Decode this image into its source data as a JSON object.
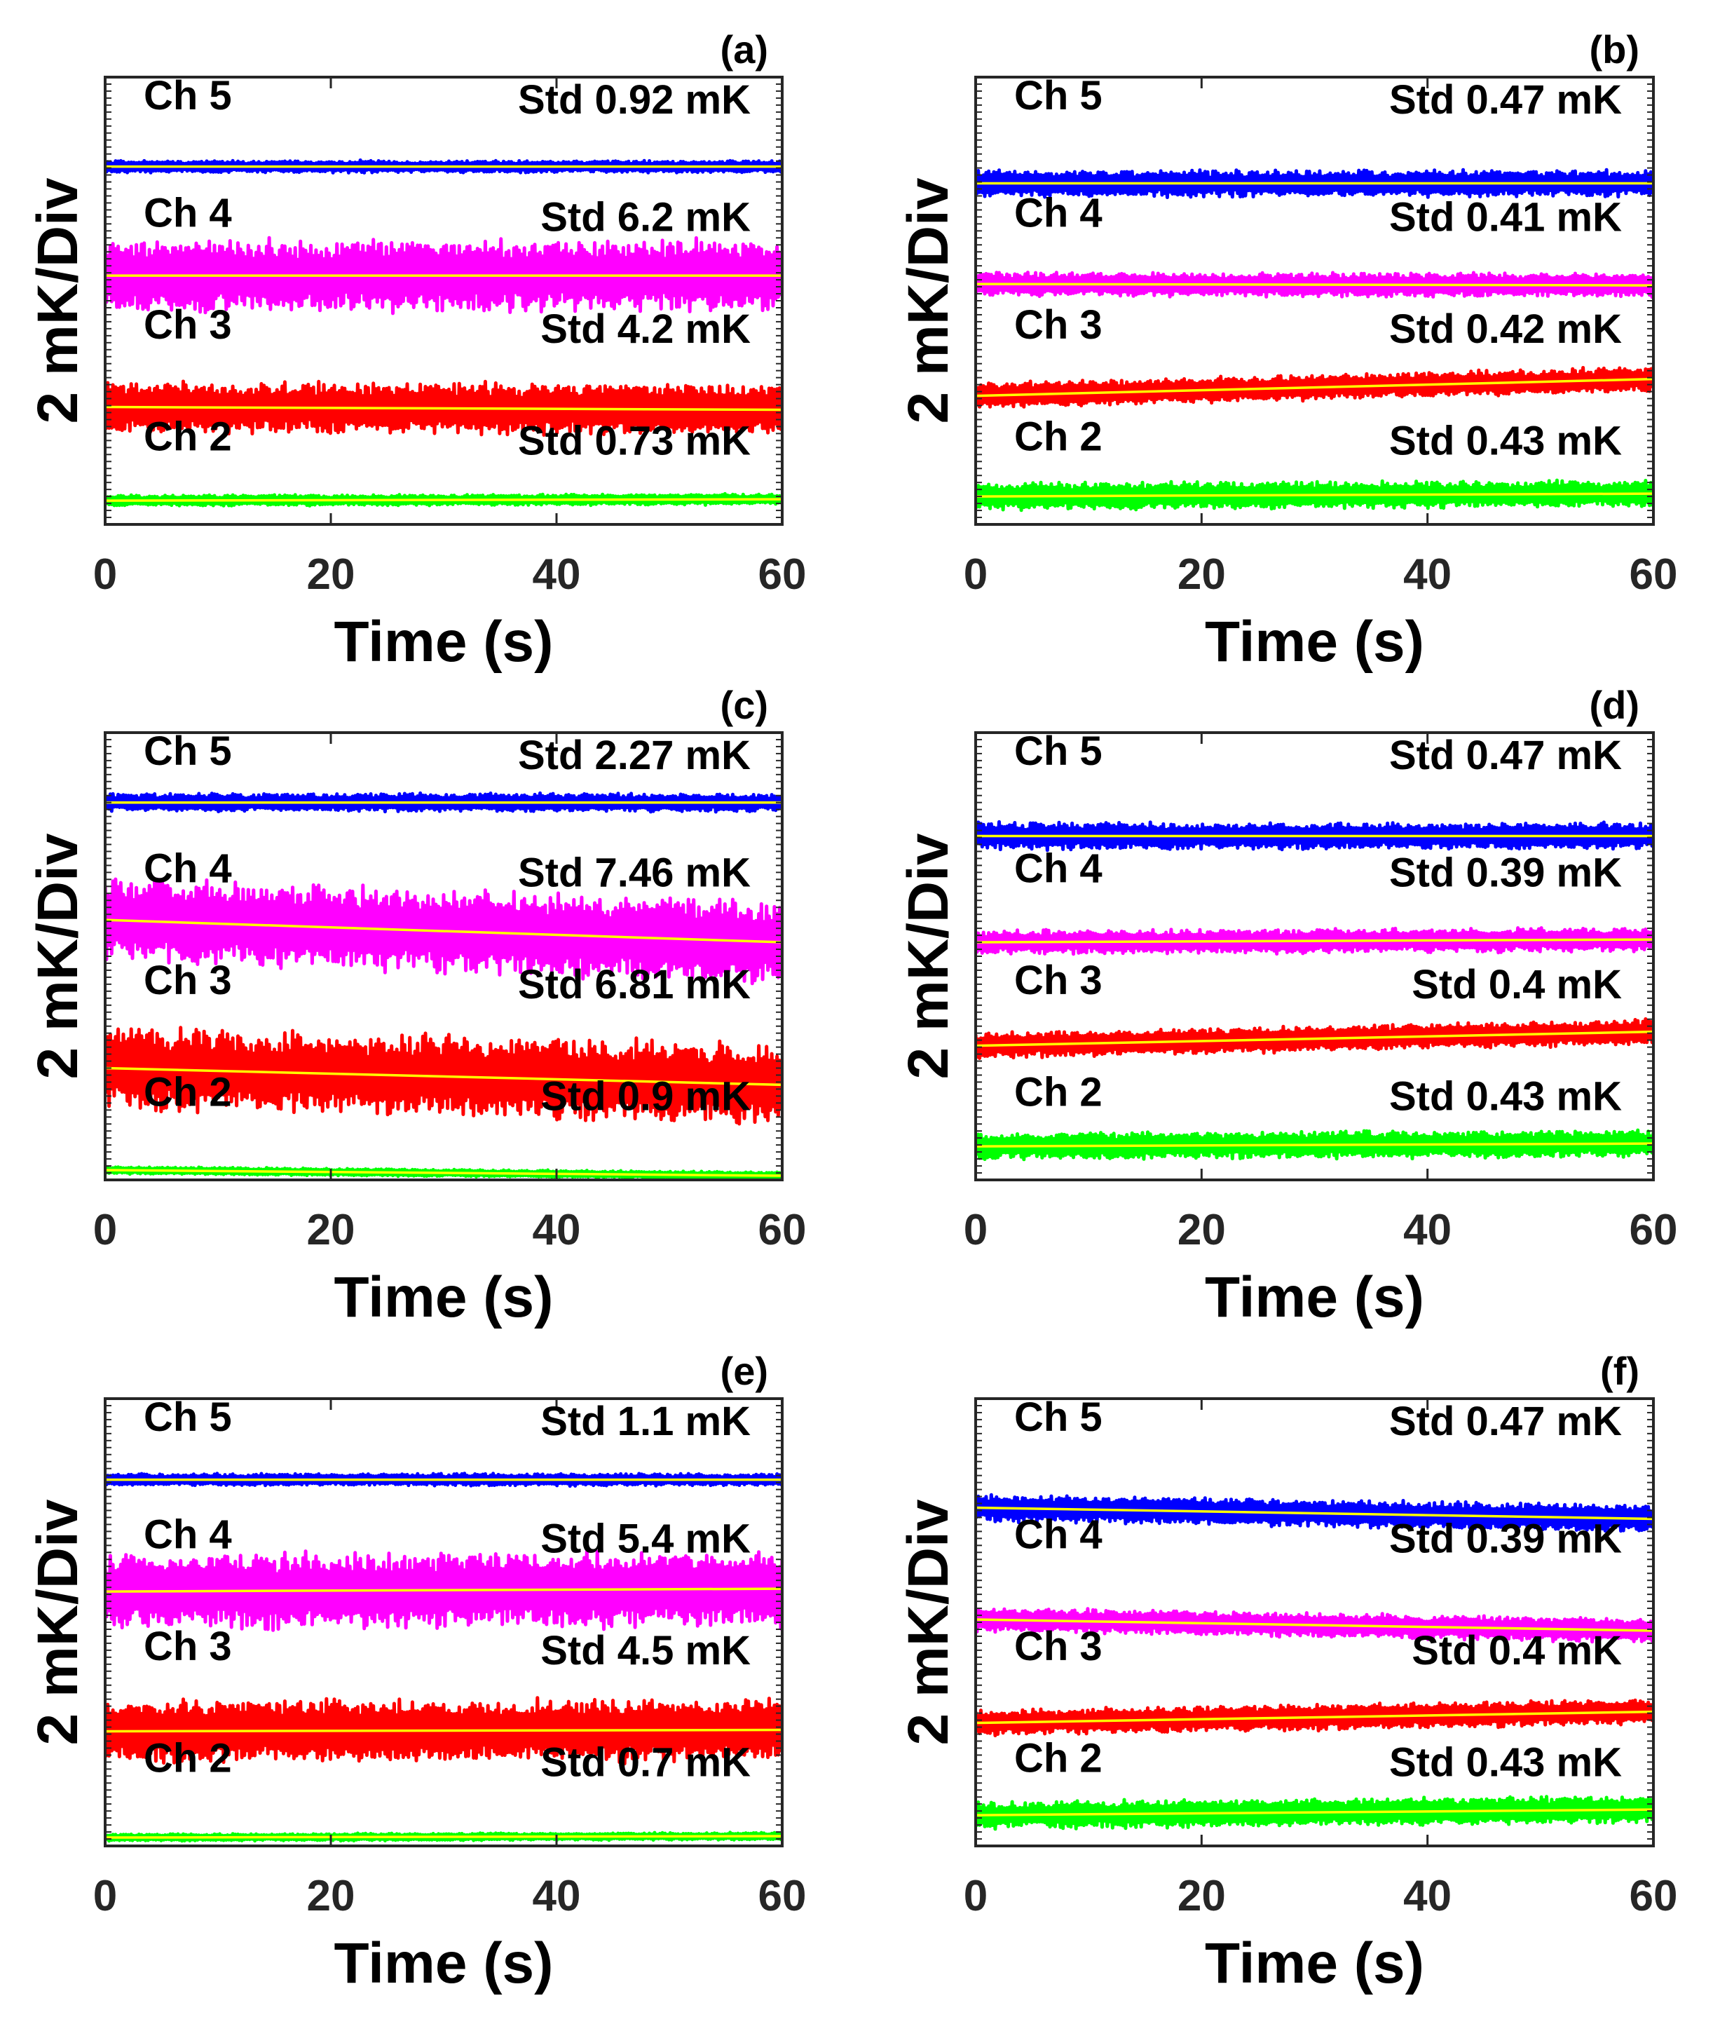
{
  "figure": {
    "palette": {
      "ch5": "#0000ff",
      "ch4": "#ff00ff",
      "ch3": "#ff0000",
      "ch2": "#00ff00",
      "trend": "#ffff00",
      "axis": "#262626"
    }
  },
  "chart_data": [
    {
      "type": "line",
      "panel_label": "(a)",
      "xlabel": "Time (s)",
      "ylabel": "2 mK/Div",
      "xlim": [
        0,
        60
      ],
      "ylim": [
        0,
        16
      ],
      "xticks": [
        "0",
        "20",
        "40",
        "60"
      ],
      "series": [
        {
          "name": "Ch 5",
          "std_label": "Std 0.92 mK",
          "color": "#0000ff",
          "mean_start": 12.8,
          "mean_end": 12.8,
          "noise": 0.2
        },
        {
          "name": "Ch 4",
          "std_label": "Std 6.2 mK",
          "color": "#ff00ff",
          "mean_start": 8.9,
          "mean_end": 8.9,
          "noise": 1.2
        },
        {
          "name": "Ch 3",
          "std_label": "Std 4.2 mK",
          "color": "#ff0000",
          "mean_start": 4.2,
          "mean_end": 4.1,
          "noise": 0.85
        },
        {
          "name": "Ch 2",
          "std_label": "Std 0.73 mK",
          "color": "#00ff00",
          "mean_start": 0.85,
          "mean_end": 0.9,
          "noise": 0.18
        }
      ]
    },
    {
      "type": "line",
      "panel_label": "(b)",
      "xlabel": "Time (s)",
      "ylabel": "2 mK/Div",
      "xlim": [
        0,
        60
      ],
      "ylim": [
        0,
        16
      ],
      "xticks": [
        "0",
        "20",
        "40",
        "60"
      ],
      "series": [
        {
          "name": "Ch 5",
          "std_label": "Std 0.47 mK",
          "color": "#0000ff",
          "mean_start": 12.2,
          "mean_end": 12.2,
          "noise": 0.45
        },
        {
          "name": "Ch 4",
          "std_label": "Std 0.41 mK",
          "color": "#ff00ff",
          "mean_start": 8.6,
          "mean_end": 8.55,
          "noise": 0.4
        },
        {
          "name": "Ch 3",
          "std_label": "Std 0.42 mK",
          "color": "#ff0000",
          "mean_start": 4.6,
          "mean_end": 5.2,
          "noise": 0.42
        },
        {
          "name": "Ch 2",
          "std_label": "Std 0.43 mK",
          "color": "#00ff00",
          "mean_start": 1.0,
          "mean_end": 1.1,
          "noise": 0.45
        }
      ]
    },
    {
      "type": "line",
      "panel_label": "(c)",
      "xlabel": "Time (s)",
      "ylabel": "2 mK/Div",
      "xlim": [
        0,
        60
      ],
      "ylim": [
        0,
        16
      ],
      "xticks": [
        "0",
        "20",
        "40",
        "60"
      ],
      "series": [
        {
          "name": "Ch 5",
          "std_label": "Std 2.27 mK",
          "color": "#0000ff",
          "mean_start": 13.5,
          "mean_end": 13.5,
          "noise": 0.3
        },
        {
          "name": "Ch 4",
          "std_label": "Std 7.46 mK",
          "color": "#ff00ff",
          "mean_start": 9.3,
          "mean_end": 8.5,
          "noise": 1.4
        },
        {
          "name": "Ch 3",
          "std_label": "Std 6.81 mK",
          "color": "#ff0000",
          "mean_start": 4.0,
          "mean_end": 3.4,
          "noise": 1.35
        },
        {
          "name": "Ch 2",
          "std_label": "Std 0.9 mK",
          "color": "#00ff00",
          "mean_start": 0.35,
          "mean_end": 0.15,
          "noise": 0.12
        }
      ]
    },
    {
      "type": "line",
      "panel_label": "(d)",
      "xlabel": "Time (s)",
      "ylabel": "2 mK/Div",
      "xlim": [
        0,
        60
      ],
      "ylim": [
        0,
        16
      ],
      "xticks": [
        "0",
        "20",
        "40",
        "60"
      ],
      "series": [
        {
          "name": "Ch 5",
          "std_label": "Std 0.47 mK",
          "color": "#0000ff",
          "mean_start": 12.3,
          "mean_end": 12.3,
          "noise": 0.45
        },
        {
          "name": "Ch 4",
          "std_label": "Std 0.39 mK",
          "color": "#ff00ff",
          "mean_start": 8.5,
          "mean_end": 8.6,
          "noise": 0.4
        },
        {
          "name": "Ch 3",
          "std_label": "Std 0.4 mK",
          "color": "#ff0000",
          "mean_start": 4.8,
          "mean_end": 5.3,
          "noise": 0.42
        },
        {
          "name": "Ch 2",
          "std_label": "Std 0.43 mK",
          "color": "#00ff00",
          "mean_start": 1.2,
          "mean_end": 1.3,
          "noise": 0.45
        }
      ]
    },
    {
      "type": "line",
      "panel_label": "(e)",
      "xlabel": "Time (s)",
      "ylabel": "2 mK/Div",
      "xlim": [
        0,
        60
      ],
      "ylim": [
        0,
        16
      ],
      "xticks": [
        "0",
        "20",
        "40",
        "60"
      ],
      "series": [
        {
          "name": "Ch 5",
          "std_label": "Std 1.1 mK",
          "color": "#0000ff",
          "mean_start": 13.1,
          "mean_end": 13.1,
          "noise": 0.2
        },
        {
          "name": "Ch 4",
          "std_label": "Std 5.4 mK",
          "color": "#ff00ff",
          "mean_start": 9.1,
          "mean_end": 9.2,
          "noise": 1.25
        },
        {
          "name": "Ch 3",
          "std_label": "Std 4.5 mK",
          "color": "#ff0000",
          "mean_start": 4.1,
          "mean_end": 4.15,
          "noise": 1.05
        },
        {
          "name": "Ch 2",
          "std_label": "Std 0.7 mK",
          "color": "#00ff00",
          "mean_start": 0.3,
          "mean_end": 0.35,
          "noise": 0.12
        }
      ]
    },
    {
      "type": "line",
      "panel_label": "(f)",
      "xlabel": "Time (s)",
      "ylabel": "2 mK/Div",
      "xlim": [
        0,
        60
      ],
      "ylim": [
        0,
        16
      ],
      "xticks": [
        "0",
        "20",
        "40",
        "60"
      ],
      "series": [
        {
          "name": "Ch 5",
          "std_label": "Std 0.47 mK",
          "color": "#0000ff",
          "mean_start": 12.1,
          "mean_end": 11.7,
          "noise": 0.45
        },
        {
          "name": "Ch 4",
          "std_label": "Std 0.39 mK",
          "color": "#ff00ff",
          "mean_start": 8.1,
          "mean_end": 7.7,
          "noise": 0.4
        },
        {
          "name": "Ch 3",
          "std_label": "Std 0.4 mK",
          "color": "#ff0000",
          "mean_start": 4.4,
          "mean_end": 4.8,
          "noise": 0.42
        },
        {
          "name": "Ch 2",
          "std_label": "Std 0.43 mK",
          "color": "#00ff00",
          "mean_start": 1.1,
          "mean_end": 1.3,
          "noise": 0.45
        }
      ]
    }
  ]
}
